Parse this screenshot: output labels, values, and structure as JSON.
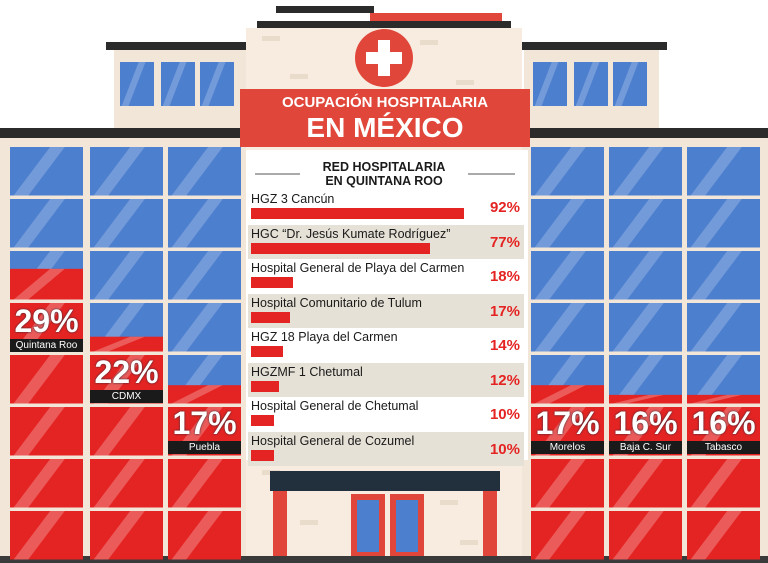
{
  "header": {
    "title_line1": "OCUPACIÓN HOSPITALARIA",
    "title_line2": "EN MÉXICO",
    "subtitle_line1": "RED HOSPITALARIA",
    "subtitle_line2": "EN QUINTANA ROO"
  },
  "colors": {
    "window_blue": "#4d7fcf",
    "occupancy_red": "#e42423",
    "facade": "#f2e6d8",
    "header_red": "#e0473a",
    "dark": "#1a1a1a"
  },
  "icons": [
    "medical-cross-icon"
  ],
  "chart_data": [
    {
      "type": "bar",
      "orientation": "vertical",
      "title": "OCUPACIÓN HOSPITALARIA EN MÉXICO",
      "categories": [
        "Quintana Roo",
        "CDMX",
        "Puebla",
        "Morelos",
        "Baja C. Sur",
        "Tabasco"
      ],
      "values": [
        29,
        22,
        17,
        17,
        16,
        16
      ],
      "value_labels": [
        "29%",
        "22%",
        "17%",
        "17%",
        "16%",
        "16%"
      ],
      "unit": "%",
      "ylim": [
        0,
        100
      ]
    },
    {
      "type": "bar",
      "orientation": "horizontal",
      "title": "RED HOSPITALARIA EN QUINTANA ROO",
      "categories": [
        "HGZ 3 Cancún",
        "HGC “Dr. Jesús Kumate Rodríguez”",
        "Hospital General de Playa del Carmen",
        "Hospital Comunitario de Tulum",
        "HGZ 18 Playa del Carmen",
        "HGZMF 1 Chetumal",
        "Hospital General de Chetumal",
        "Hospital General de Cozumel"
      ],
      "values": [
        92,
        77,
        18,
        17,
        14,
        12,
        10,
        10
      ],
      "value_labels": [
        "92%",
        "77%",
        "18%",
        "17%",
        "14%",
        "12%",
        "10%",
        "10%"
      ],
      "unit": "%",
      "xlim": [
        0,
        100
      ]
    }
  ]
}
